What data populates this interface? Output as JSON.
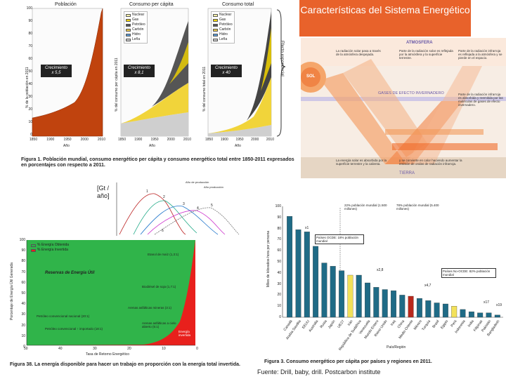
{
  "slide_title": "Características del Sistema Energético",
  "source_note": "Fuente: Drill, baby, drill. Postcarbon institute",
  "fig1": {
    "panel_titles": [
      "Población",
      "Consumo per cápita",
      "Consumo total"
    ],
    "y_axis_titles": [
      "% de la población en 2011",
      "% del consumo per cápita en 2011",
      "% del consumo total en 2011"
    ],
    "y_ticks": [
      "100",
      "90",
      "80",
      "70",
      "60",
      "50",
      "40",
      "30",
      "20",
      "10",
      "0"
    ],
    "x_ticks": [
      "1850",
      "1900",
      "1950",
      "2000",
      "2010"
    ],
    "x_label": "Año",
    "legend_title_note": "Fuentes",
    "legend": [
      {
        "label": "Nuclear",
        "color": "#f7f0a8"
      },
      {
        "label": "Gas",
        "color": "#f2d400"
      },
      {
        "label": "Petróleo",
        "color": "#555555"
      },
      {
        "label": "Carbón",
        "color": "#e8c84a"
      },
      {
        "label": "Hidro",
        "color": "#5a9ad6"
      },
      {
        "label": "Leña",
        "color": "#c8c8c8"
      }
    ],
    "badges": [
      {
        "label": "Crecimiento",
        "value": "x 5,5"
      },
      {
        "label": "Crecimiento",
        "value": "x 8,1"
      },
      {
        "label": "Crecimiento",
        "value": "x 40"
      }
    ],
    "brace_label": "Efecto exponencial",
    "caption_lead": "Figura 1.",
    "caption_text": "Población mundial, consumo energético per cápita y consumo energético total entre 1850-2011 expresados en porcentajes con respecto a 2011."
  },
  "fig_earth": {
    "atmos_label": "ATMOSFERA",
    "sun_label": "SOL",
    "gases_label": "GASES DE EFECTO INVERNADERO",
    "earth_label": "TIERRA",
    "notes": [
      "La radiación solar pasa a través de la atmósfera despejada.",
      "Parte de la radiación solar es reflejada por la atmósfera y la superficie terrestre.",
      "Parte de la radiación infrarroja es reflejada a la atmósfera y se pierde en el espacio.",
      "Parte de la radiación infrarroja es absorbida y reemitida por las moléculas de gases de efecto invernadero.",
      "La energía solar es absorbida por la superficie terrestre y la calienta.",
      "y se convierte en calor haciendo aumentar la emisión de ondas de radiación infrarroja."
    ]
  },
  "fig_peak": {
    "y_label": "[Gt / año]",
    "legend_lines": [
      "Año de producción",
      "Año producción"
    ],
    "curve_numbers": [
      "1",
      "2",
      "3",
      "4",
      "5",
      "6"
    ]
  },
  "fig38": {
    "legend": [
      {
        "label": "% Energía Obtenida",
        "color": "#2bb24c"
      },
      {
        "label": "% Energía Invertida",
        "color": "#e8201c"
      }
    ],
    "y_title": "Porcentaje de Energía Útil Generada",
    "y_ticks": [
      "100",
      "90",
      "80",
      "70",
      "60",
      "50",
      "40",
      "30",
      "20",
      "10",
      "0"
    ],
    "x_ticks": [
      "50",
      "40",
      "30",
      "20",
      "10",
      "0"
    ],
    "x_title": "Tasa de Retorno Energético",
    "region_label": "Reservas de Energía Útil",
    "annotations": [
      "Etanol de maíz (1,3:1)",
      "Biodiésel de soja (1,7:1)",
      "Arenas asfálticas mineras (3:1)",
      "Petróleo convencional nacional (20:1)",
      "Arenas asfálticas a cielo abierto (5:1)",
      "Petróleo convencional ↑ importado (18:1)",
      "Energía invertida"
    ],
    "caption_lead": "Figura 38.",
    "caption_text": "La energía disponible para hacer un trabajo en proporción con la energía total invertida."
  },
  "fig3": {
    "y_title": "Miles de kilovatios-hora por persona",
    "y_ticks": [
      "100",
      "90",
      "80",
      "70",
      "60",
      "50",
      "40",
      "30",
      "20",
      "10",
      "0"
    ],
    "group_labels": [
      "22% población mundial (1.500 millones)",
      "78% población mundial (5.400 millones)"
    ],
    "oecd_label": "Países OCDE: 18% población mundial",
    "non_oecd_label": "Países No-OCDE: 82% población mundial",
    "value_labels": [
      "x1",
      "x2,8",
      "x4,7",
      "x17",
      "x19"
    ],
    "x_title": "País/Región",
    "countries": [
      "Canadá",
      "Arabia Saudita",
      "EEUU",
      "Australia",
      "Rusia",
      "Japón",
      "UE27",
      "Irán",
      "República de Sudáfrica",
      "Venezuela",
      "Mundo Entero",
      "Reino Unido",
      "Iraq",
      "China",
      "Medio Oriente",
      "México",
      "Turquía",
      "Brasil",
      "Egipto",
      "Perú",
      "Indonesia",
      "India",
      "Filipinas",
      "Pakistán",
      "Bangladesh"
    ],
    "caption_lead": "Figura 3.",
    "caption_text": "Consumo energético per cápita por países y regiones en 2011."
  },
  "chart_data": [
    {
      "type": "bar",
      "title": "Consumo energético per cápita por países y regiones en 2011",
      "xlabel": "País/Región",
      "ylabel": "Miles de kilovatios-hora por persona",
      "ylim": [
        0,
        100
      ],
      "categories": [
        "Canadá",
        "Arabia Saudita",
        "EEUU",
        "Australia",
        "Rusia",
        "Japón",
        "UE27",
        "Irán",
        "República de Sudáfrica",
        "Venezuela",
        "Mundo Entero",
        "Reino Unido",
        "Iraq",
        "China",
        "Medio Oriente",
        "México",
        "Turquía",
        "Brasil",
        "Egipto",
        "Perú",
        "Indonesia",
        "India",
        "Filipinas",
        "Pakistán",
        "Bangladesh"
      ],
      "values": [
        91,
        79,
        77,
        64,
        49,
        46,
        42,
        38,
        38,
        31,
        27,
        25,
        24,
        20,
        19,
        17,
        15,
        13,
        12,
        10,
        7,
        5,
        4,
        4,
        2
      ],
      "colors": [
        "#1f6b86",
        "#1f6b86",
        "#1f6b86",
        "#1f6b86",
        "#1f6b86",
        "#1f6b86",
        "#1f6b86",
        "#f3e15a",
        "#1f6b86",
        "#1f6b86",
        "#1f6b86",
        "#1f6b86",
        "#1f6b86",
        "#1f6b86",
        "#b8281c",
        "#1f6b86",
        "#1f6b86",
        "#1f6b86",
        "#1f6b86",
        "#f3e15a",
        "#1f6b86",
        "#1f6b86",
        "#1f6b86",
        "#1f6b86",
        "#1f6b86"
      ]
    }
  ]
}
